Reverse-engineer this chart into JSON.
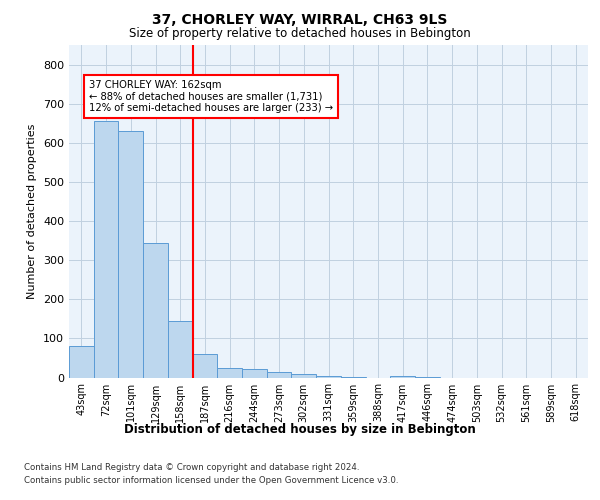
{
  "title": "37, CHORLEY WAY, WIRRAL, CH63 9LS",
  "subtitle": "Size of property relative to detached houses in Bebington",
  "xlabel": "Distribution of detached houses by size in Bebington",
  "ylabel": "Number of detached properties",
  "bar_labels": [
    "43sqm",
    "72sqm",
    "101sqm",
    "129sqm",
    "158sqm",
    "187sqm",
    "216sqm",
    "244sqm",
    "273sqm",
    "302sqm",
    "331sqm",
    "359sqm",
    "388sqm",
    "417sqm",
    "446sqm",
    "474sqm",
    "503sqm",
    "532sqm",
    "561sqm",
    "589sqm",
    "618sqm"
  ],
  "bar_values": [
    80,
    655,
    630,
    345,
    145,
    60,
    25,
    22,
    13,
    8,
    3,
    1,
    0,
    5,
    1,
    0,
    0,
    0,
    0,
    0,
    0
  ],
  "bar_color": "#BDD7EE",
  "bar_edge_color": "#5B9BD5",
  "annotation_line1": "37 CHORLEY WAY: 162sqm",
  "annotation_line2": "← 88% of detached houses are smaller (1,731)",
  "annotation_line3": "12% of semi-detached houses are larger (233) →",
  "ylim": [
    0,
    850
  ],
  "yticks": [
    0,
    100,
    200,
    300,
    400,
    500,
    600,
    700,
    800
  ],
  "grid_color": "#C0D0E0",
  "background_color": "#EBF3FB",
  "footer_line1": "Contains HM Land Registry data © Crown copyright and database right 2024.",
  "footer_line2": "Contains public sector information licensed under the Open Government Licence v3.0."
}
